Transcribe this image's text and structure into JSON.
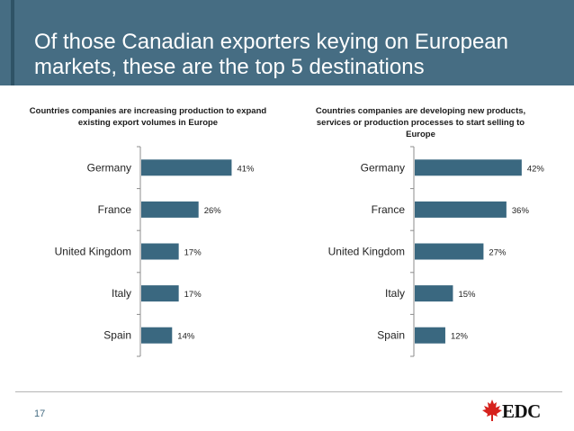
{
  "slide": {
    "title": "Of those Canadian exporters keying on European markets, these are the top 5 destinations",
    "page_number": "17",
    "logo": {
      "text": "EDC",
      "icon": "maple-leaf-icon"
    }
  },
  "colors": {
    "header": "#466d83",
    "bar": "#3a6880",
    "leaf": "#d6221d"
  },
  "chart_data": [
    {
      "type": "bar",
      "orientation": "horizontal",
      "title": "Countries companies are increasing production to expand existing export volumes in Europe",
      "categories": [
        "Germany",
        "France",
        "United Kingdom",
        "Italy",
        "Spain"
      ],
      "values": [
        41,
        26,
        17,
        17,
        14
      ],
      "value_labels": [
        "41%",
        "26%",
        "17%",
        "17%",
        "14%"
      ],
      "unit": "%",
      "xlim": [
        0,
        50
      ],
      "grid": false,
      "legend": "none"
    },
    {
      "type": "bar",
      "orientation": "horizontal",
      "title": "Countries companies are developing new products, services or production processes to start selling to Europe",
      "categories": [
        "Germany",
        "France",
        "United Kingdom",
        "Italy",
        "Spain"
      ],
      "values": [
        42,
        36,
        27,
        15,
        12
      ],
      "value_labels": [
        "42%",
        "36%",
        "27%",
        "15%",
        "12%"
      ],
      "unit": "%",
      "xlim": [
        0,
        50
      ],
      "grid": false,
      "legend": "none"
    }
  ]
}
